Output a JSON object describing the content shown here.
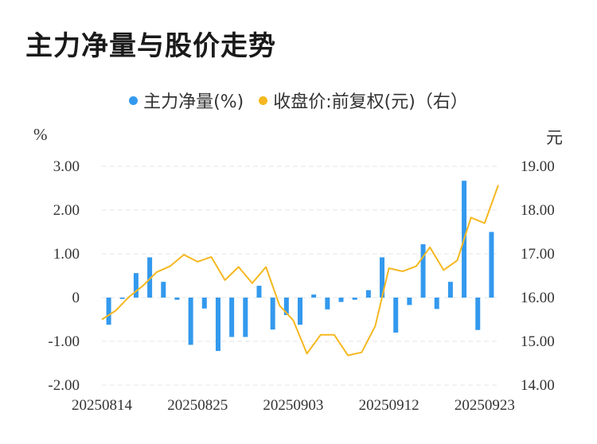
{
  "title": "主力净量与股价走势",
  "legend": {
    "series1": "主力净量(%)",
    "series2": "收盘价:前复权(元)（右）"
  },
  "units": {
    "left": "%",
    "right": "元"
  },
  "colors": {
    "bar": "#3399ee",
    "line": "#f5b820",
    "grid": "#e6e6e6"
  },
  "chart_data": {
    "type": "bar+line",
    "title": "主力净量与股价走势",
    "x_tick_labels": [
      "20250814",
      "20250825",
      "20250903",
      "20250912",
      "20250923"
    ],
    "x_tick_index": [
      0,
      7,
      14,
      21,
      28
    ],
    "y_left": {
      "label": "%",
      "ticks": [
        "3.00",
        "2.00",
        "1.00",
        "0",
        "-1.00",
        "-2.00"
      ],
      "range": [
        -2,
        3
      ]
    },
    "y_right": {
      "label": "元",
      "ticks": [
        "19.00",
        "18.00",
        "17.00",
        "16.00",
        "15.00",
        "14.00"
      ],
      "range": [
        14,
        19
      ]
    },
    "grid": true,
    "series": [
      {
        "name": "主力净量(%)",
        "type": "bar",
        "axis": "left",
        "values": [
          -0.62,
          -0.03,
          0.56,
          0.92,
          0.36,
          -0.05,
          -1.08,
          -0.25,
          -1.22,
          -0.9,
          -0.9,
          0.27,
          -0.73,
          -0.4,
          -0.62,
          0.07,
          -0.27,
          -0.1,
          -0.05,
          0.17,
          0.92,
          -0.8,
          -0.17,
          1.22,
          -0.26,
          0.36,
          2.67,
          -0.74,
          1.5
        ]
      },
      {
        "name": "收盘价:前复权(元)（右）",
        "type": "line",
        "axis": "right",
        "values": [
          15.5,
          15.7,
          16.02,
          16.27,
          16.58,
          16.72,
          16.98,
          16.82,
          16.93,
          16.4,
          16.7,
          16.33,
          16.7,
          15.82,
          15.48,
          14.72,
          15.15,
          15.15,
          14.68,
          14.75,
          15.35,
          16.67,
          16.6,
          16.72,
          17.15,
          16.63,
          16.85,
          17.83,
          17.7,
          18.57
        ]
      }
    ]
  }
}
